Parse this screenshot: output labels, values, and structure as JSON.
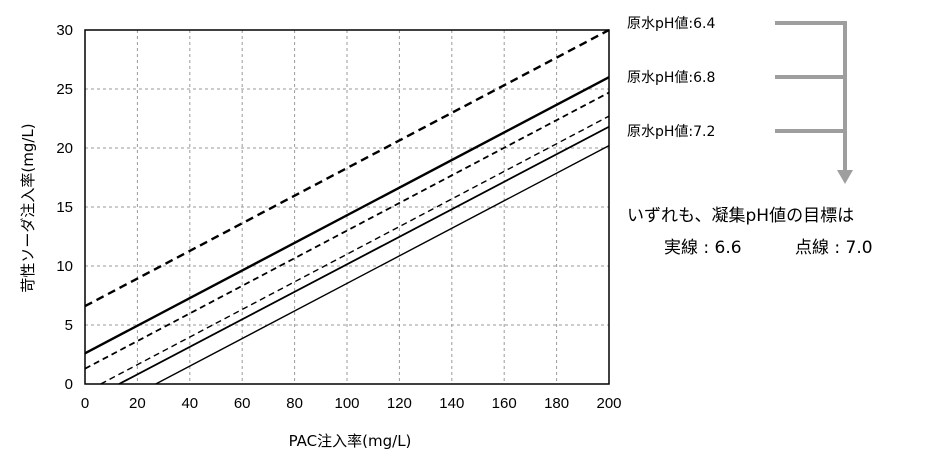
{
  "chart_data": {
    "type": "line",
    "title": "",
    "xlabel": "PAC注入率(mg/L)",
    "ylabel": "苛性ソーダ注入率(mg/L)",
    "xlim": [
      0,
      200
    ],
    "ylim": [
      0,
      30
    ],
    "x_ticks": [
      "0",
      "20",
      "40",
      "60",
      "80",
      "100",
      "120",
      "140",
      "160",
      "180",
      "200"
    ],
    "y_ticks": [
      "0",
      "5",
      "10",
      "15",
      "20",
      "25",
      "30"
    ],
    "grid": true,
    "series": [
      {
        "source_ph": "6.4",
        "target_ph": "6.6",
        "style": "solid",
        "weight": "heavy",
        "x": [
          0,
          200
        ],
        "y": [
          2.6,
          26.0
        ]
      },
      {
        "source_ph": "6.4",
        "target_ph": "7.0",
        "style": "dashed",
        "weight": "heavy",
        "x": [
          0,
          200
        ],
        "y": [
          6.6,
          30.0
        ]
      },
      {
        "source_ph": "6.8",
        "target_ph": "6.6",
        "style": "solid",
        "weight": "medium",
        "x": [
          13,
          200
        ],
        "y": [
          0,
          21.8
        ]
      },
      {
        "source_ph": "6.8",
        "target_ph": "7.0",
        "style": "dashed",
        "weight": "medium",
        "x": [
          0,
          200
        ],
        "y": [
          1.3,
          24.7
        ]
      },
      {
        "source_ph": "7.2",
        "target_ph": "6.6",
        "style": "solid",
        "weight": "light",
        "x": [
          27,
          200
        ],
        "y": [
          0,
          20.2
        ]
      },
      {
        "source_ph": "7.2",
        "target_ph": "7.0",
        "style": "dashed",
        "weight": "light",
        "x": [
          6,
          200
        ],
        "y": [
          0,
          22.7
        ]
      }
    ]
  },
  "legend": {
    "ph1": "原水pH値:6.4",
    "ph2": "原水pH値:6.8",
    "ph3": "原水pH値:7.2",
    "note": "いずれも、凝集pH値の目標は",
    "solid_label": "実線 : 6.6",
    "dotted_label": "点線 : 7.0"
  },
  "colors": {
    "line": "#000000",
    "grid": "#9a9a9a",
    "bracket": "#9e9e9e"
  }
}
